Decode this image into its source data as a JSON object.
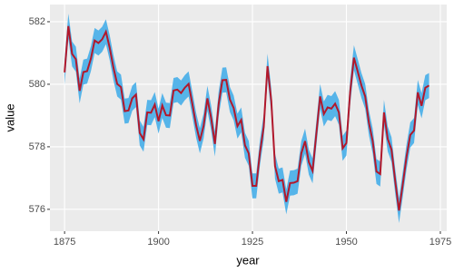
{
  "chart_data": {
    "type": "ribbon-line",
    "x_label": "year",
    "y_label": "value",
    "x": [
      1875,
      1876,
      1877,
      1878,
      1879,
      1880,
      1881,
      1882,
      1883,
      1884,
      1885,
      1886,
      1887,
      1888,
      1889,
      1890,
      1891,
      1892,
      1893,
      1894,
      1895,
      1896,
      1897,
      1898,
      1899,
      1900,
      1901,
      1902,
      1903,
      1904,
      1905,
      1906,
      1907,
      1908,
      1909,
      1910,
      1911,
      1912,
      1913,
      1914,
      1915,
      1916,
      1917,
      1918,
      1919,
      1920,
      1921,
      1922,
      1923,
      1924,
      1925,
      1926,
      1927,
      1928,
      1929,
      1930,
      1931,
      1932,
      1933,
      1934,
      1935,
      1936,
      1937,
      1938,
      1939,
      1940,
      1941,
      1942,
      1943,
      1944,
      1945,
      1946,
      1947,
      1948,
      1949,
      1950,
      1951,
      1952,
      1953,
      1954,
      1955,
      1956,
      1957,
      1958,
      1959,
      1960,
      1961,
      1962,
      1963,
      1964,
      1965,
      1966,
      1967,
      1968,
      1969,
      1970,
      1971,
      1972
    ],
    "values": [
      580.38,
      581.86,
      580.97,
      580.8,
      579.79,
      580.39,
      580.42,
      580.82,
      581.4,
      581.32,
      581.44,
      581.68,
      581.17,
      580.53,
      580.01,
      579.91,
      579.14,
      579.16,
      579.55,
      579.67,
      578.44,
      578.24,
      579.1,
      579.09,
      579.35,
      578.82,
      579.32,
      579.01,
      579.0,
      579.8,
      579.83,
      579.72,
      579.89,
      580.01,
      579.37,
      578.69,
      578.19,
      578.67,
      579.55,
      578.92,
      578.09,
      579.37,
      580.13,
      580.14,
      579.51,
      579.24,
      578.66,
      578.86,
      578.05,
      577.79,
      576.75,
      576.75,
      577.82,
      578.64,
      580.58,
      579.48,
      577.38,
      576.9,
      576.94,
      576.24,
      576.84,
      576.85,
      576.9,
      577.79,
      578.18,
      577.51,
      577.23,
      578.42,
      579.61,
      579.05,
      579.26,
      579.22,
      579.38,
      579.1,
      577.95,
      578.12,
      579.75,
      580.85,
      580.41,
      579.96,
      579.61,
      578.76,
      578.18,
      577.21,
      577.13,
      579.1,
      578.25,
      577.91,
      576.89,
      575.96,
      576.8,
      577.68,
      578.38,
      578.52,
      579.74,
      579.31,
      579.89,
      579.96
    ],
    "ymin": [
      579.98,
      581.46,
      580.57,
      580.4,
      579.39,
      579.99,
      580.02,
      580.42,
      581.0,
      580.92,
      581.04,
      581.28,
      580.77,
      580.13,
      579.61,
      579.51,
      578.74,
      578.76,
      579.15,
      579.27,
      578.04,
      577.84,
      578.7,
      578.69,
      578.95,
      578.42,
      578.92,
      578.61,
      578.6,
      579.4,
      579.43,
      579.32,
      579.49,
      579.61,
      578.97,
      578.29,
      577.79,
      578.27,
      579.15,
      578.52,
      577.69,
      578.97,
      579.73,
      579.74,
      579.11,
      578.84,
      578.26,
      578.46,
      577.65,
      577.39,
      576.35,
      576.35,
      577.42,
      578.24,
      580.18,
      579.08,
      576.98,
      576.5,
      576.54,
      575.84,
      576.44,
      576.45,
      576.5,
      577.39,
      577.78,
      577.11,
      576.83,
      578.02,
      579.21,
      578.65,
      578.86,
      578.82,
      578.98,
      578.7,
      577.55,
      577.72,
      579.35,
      580.45,
      580.01,
      579.56,
      579.21,
      578.36,
      577.78,
      576.81,
      576.73,
      578.7,
      577.85,
      577.51,
      576.49,
      575.56,
      576.4,
      577.28,
      577.98,
      578.12,
      579.34,
      578.91,
      579.49,
      579.56
    ],
    "ymax": [
      580.78,
      582.26,
      581.37,
      581.2,
      580.19,
      580.79,
      580.82,
      581.22,
      581.8,
      581.72,
      581.84,
      582.08,
      581.57,
      580.93,
      580.41,
      580.31,
      579.54,
      579.56,
      579.95,
      580.07,
      578.84,
      578.64,
      579.5,
      579.49,
      579.75,
      579.22,
      579.72,
      579.41,
      579.4,
      580.2,
      580.23,
      580.12,
      580.29,
      580.41,
      579.77,
      579.09,
      578.59,
      579.07,
      579.95,
      579.32,
      578.49,
      579.77,
      580.53,
      580.54,
      579.91,
      579.64,
      579.06,
      579.26,
      578.45,
      578.19,
      577.15,
      577.15,
      578.22,
      579.04,
      580.98,
      579.88,
      577.78,
      577.3,
      577.34,
      576.64,
      577.24,
      577.25,
      577.3,
      578.19,
      578.58,
      577.91,
      577.63,
      578.82,
      580.01,
      579.45,
      579.66,
      579.62,
      579.78,
      579.5,
      578.35,
      578.52,
      580.15,
      581.25,
      580.81,
      580.36,
      580.01,
      579.16,
      578.58,
      577.61,
      577.53,
      579.5,
      578.65,
      578.31,
      577.29,
      576.36,
      577.2,
      578.08,
      578.78,
      578.92,
      580.14,
      579.71,
      580.29,
      580.36
    ],
    "line_color": "#b2182b",
    "ribbon_color": "#56b4e9",
    "xlim": [
      1871.1,
      1976.7
    ],
    "xticks": [
      1875,
      1900,
      1925,
      1950,
      1975
    ],
    "ylim": [
      575.3,
      582.55
    ],
    "yticks": [
      576,
      578,
      580,
      582
    ],
    "grid": true
  }
}
